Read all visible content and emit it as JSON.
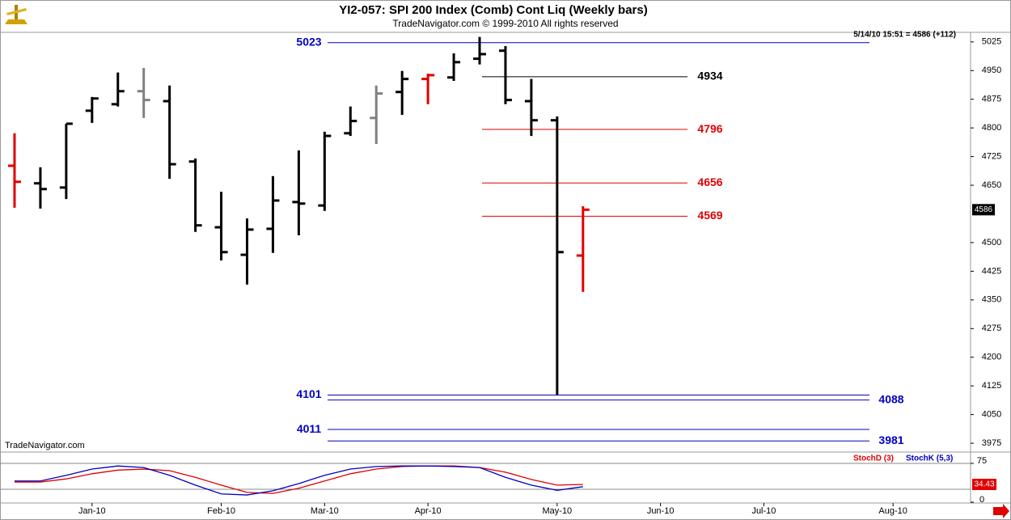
{
  "chart_data": [
    {
      "type": "ohlc",
      "title": "YI2-057:  SPI 200 Index (Comb) Cont Liq  (Weekly bars)",
      "subtitle": "TradeNavigator.com © 1999-2010 All rights reserved",
      "status": "5/14/10 15:51 = 4586 (+112)",
      "watermark": "TradeNavigator.com",
      "x": [
        0,
        1,
        2,
        3,
        4,
        5,
        6,
        7,
        8,
        9,
        10,
        11,
        12,
        13,
        14,
        15,
        16,
        17,
        18,
        19,
        20,
        21,
        22
      ],
      "open": [
        4701,
        4655,
        4644,
        4845,
        4862,
        4896,
        4870,
        4712,
        4540,
        4468,
        4536,
        4606,
        4597,
        4786,
        4826,
        4894,
        4928,
        4932,
        4981,
        5002,
        4870,
        4820,
        4466
      ],
      "high": [
        4786,
        4697,
        4811,
        4881,
        4945,
        4957,
        4911,
        4720,
        4633,
        4563,
        4674,
        4741,
        4790,
        4856,
        4911,
        4949,
        4942,
        4995,
        5038,
        5014,
        4928,
        4830,
        4595
      ],
      "low": [
        4591,
        4589,
        4614,
        4813,
        4856,
        4826,
        4667,
        4528,
        4453,
        4390,
        4473,
        4519,
        4583,
        4779,
        4758,
        4834,
        4862,
        4923,
        4966,
        4862,
        4779,
        4102,
        4371
      ],
      "close": [
        4659,
        4640,
        4811,
        4877,
        4896,
        4873,
        4705,
        4545,
        4475,
        4534,
        4610,
        4602,
        4779,
        4818,
        4890,
        4928,
        4938,
        4972,
        4993,
        4873,
        4820,
        4475,
        4586
      ],
      "colors": [
        "#e00000",
        "#000000",
        "#000000",
        "#000000",
        "#000000",
        "#808080",
        "#000000",
        "#000000",
        "#000000",
        "#000000",
        "#000000",
        "#000000",
        "#000000",
        "#000000",
        "#808080",
        "#000000",
        "#e00000",
        "#000000",
        "#000000",
        "#000000",
        "#000000",
        "#000000",
        "#e00000"
      ],
      "xlim": [
        -0.5,
        37
      ],
      "xticks": [
        {
          "value": 3,
          "label": "Jan-10"
        },
        {
          "value": 8,
          "label": "Feb-10"
        },
        {
          "value": 12,
          "label": "Mar-10"
        },
        {
          "value": 16,
          "label": "Apr-10"
        },
        {
          "value": 21,
          "label": "May-10"
        },
        {
          "value": 25,
          "label": "Jun-10"
        },
        {
          "value": 29,
          "label": "Jul-10"
        },
        {
          "value": 34,
          "label": "Aug-10"
        }
      ],
      "ylim": [
        3954,
        5050
      ],
      "yticks": [
        3975,
        4050,
        4125,
        4200,
        4275,
        4350,
        4425,
        4500,
        4650,
        4725,
        4800,
        4875,
        4950,
        5025
      ],
      "levels": [
        {
          "value": 5023,
          "color": "#0000c0",
          "side": "left",
          "span": "long"
        },
        {
          "value": 4934,
          "color": "#000000",
          "side": "right",
          "span": "short"
        },
        {
          "value": 4796,
          "color": "#e00000",
          "side": "right",
          "span": "short"
        },
        {
          "value": 4656,
          "color": "#e00000",
          "side": "right",
          "span": "short"
        },
        {
          "value": 4569,
          "color": "#e00000",
          "side": "right",
          "span": "short"
        },
        {
          "value": 4101,
          "color": "#0000c0",
          "side": "left",
          "span": "long"
        },
        {
          "value": 4088,
          "color": "#0000c0",
          "side": "right",
          "span": "long"
        },
        {
          "value": 4011,
          "color": "#0000c0",
          "side": "left",
          "span": "long"
        },
        {
          "value": 3981,
          "color": "#0000c0",
          "side": "right",
          "span": "long"
        }
      ]
    },
    {
      "type": "line",
      "series": [
        {
          "name": "StochD (3)",
          "color": "#e00000",
          "values": [
            39,
            39,
            45,
            55,
            62,
            64,
            61,
            48,
            33,
            19,
            17,
            27,
            41,
            55,
            64,
            69,
            70,
            70,
            67,
            58,
            44,
            33,
            34.43
          ]
        },
        {
          "name": "StochK (5,3)",
          "color": "#0000c0",
          "values": [
            41,
            41,
            52,
            64,
            70,
            67,
            52,
            33,
            16,
            14,
            22,
            36,
            52,
            64,
            69,
            70,
            70,
            69,
            67,
            48,
            33,
            23,
            30
          ]
        }
      ],
      "ylim": [
        0,
        100
      ],
      "yticks": [
        0,
        75
      ],
      "grid": [
        25,
        75
      ]
    }
  ]
}
